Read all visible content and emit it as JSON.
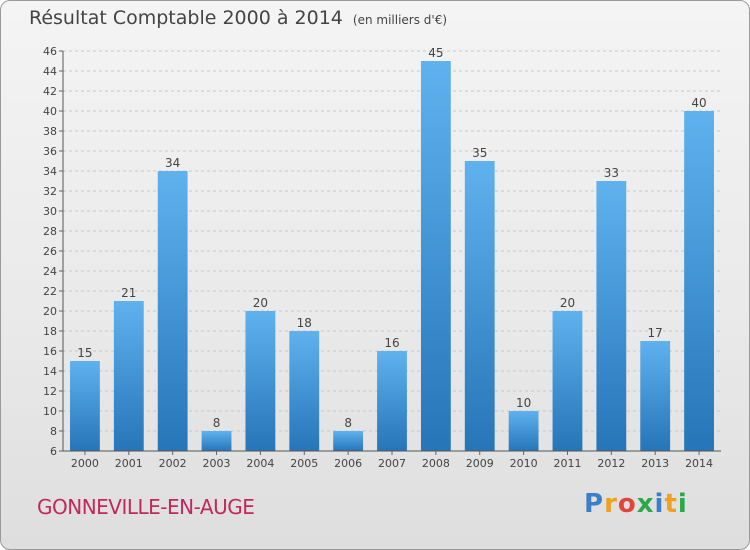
{
  "chart_data": {
    "type": "bar",
    "title": "Résultat Comptable 2000 à 2014",
    "subtitle": "(en milliers d'€)",
    "categories": [
      "2000",
      "2001",
      "2002",
      "2003",
      "2004",
      "2005",
      "2006",
      "2007",
      "2008",
      "2009",
      "2010",
      "2011",
      "2012",
      "2013",
      "2014"
    ],
    "values": [
      15,
      21,
      34,
      8,
      20,
      18,
      8,
      16,
      45,
      35,
      10,
      20,
      33,
      17,
      40
    ],
    "ylim": [
      6,
      46
    ],
    "ytick_step": 2,
    "xlabel": "",
    "ylabel": "",
    "grid": true,
    "bar_color": "#3a8fd6"
  },
  "place_name": "GONNEVILLE-EN-AUGE",
  "logo": {
    "letters": [
      "P",
      "r",
      "o",
      "x",
      "i",
      "t",
      "i"
    ],
    "colors": [
      "#3a7fc8",
      "#f0a020",
      "#e0443a",
      "#2aa84a",
      "#3a7fc8",
      "#f0a020",
      "#2aa84a"
    ]
  }
}
